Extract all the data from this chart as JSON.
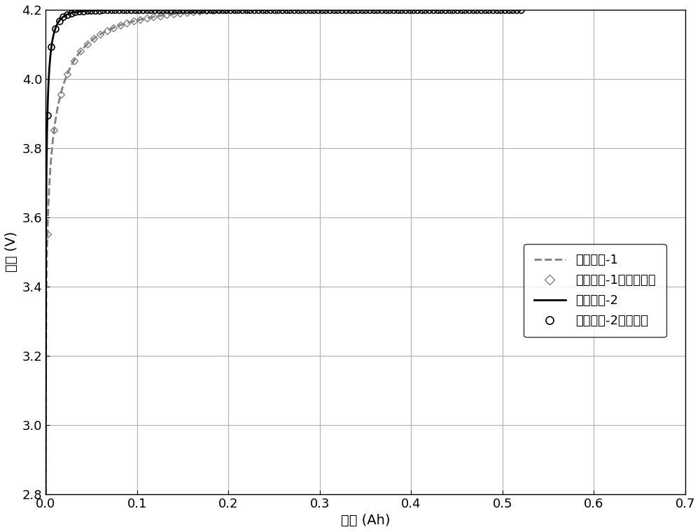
{
  "xlabel": "电量 (Ah)",
  "ylabel": "电压 (V)",
  "xlim": [
    0,
    0.7
  ],
  "ylim": [
    2.8,
    4.2
  ],
  "xticks": [
    0.0,
    0.1,
    0.2,
    0.3,
    0.4,
    0.5,
    0.6,
    0.7
  ],
  "yticks": [
    2.8,
    3.0,
    3.2,
    3.4,
    3.6,
    3.8,
    4.0,
    4.2
  ],
  "legend_labels": [
    "充电曲线-1",
    "充电曲线-1的估计结果",
    "充电曲线-2",
    "充电曲线-2估计结果"
  ],
  "curve1_color": "#808080",
  "curve2_color": "#000000",
  "background_color": "#ffffff",
  "grid_color": "#b0b0b0",
  "font_size": 14,
  "legend_font_size": 13
}
